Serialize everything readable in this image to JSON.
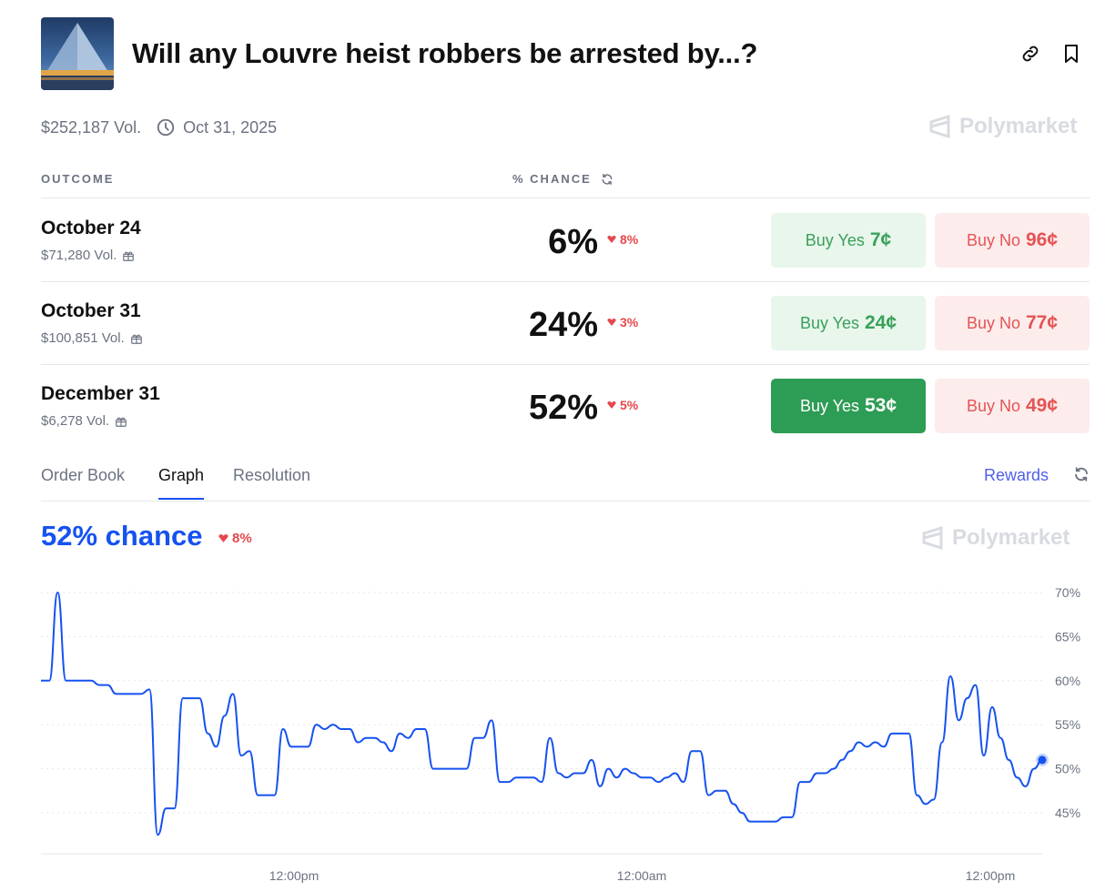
{
  "header": {
    "title": "Will any Louvre heist robbers be arrested by...?",
    "link_icon": "link-icon",
    "bookmark_icon": "bookmark-icon"
  },
  "meta": {
    "volume": "$252,187 Vol.",
    "date": "Oct 31, 2025",
    "brand": "Polymarket"
  },
  "table": {
    "col_outcome": "OUTCOME",
    "col_chance": "% CHANCE",
    "rows": [
      {
        "name": "October 24",
        "volume": "$71,280 Vol.",
        "chance": "6%",
        "change": "8%",
        "yes_label": "Buy Yes",
        "yes_price": "7¢",
        "no_label": "Buy No",
        "no_price": "96¢"
      },
      {
        "name": "October 31",
        "volume": "$100,851 Vol.",
        "chance": "24%",
        "change": "3%",
        "yes_label": "Buy Yes",
        "yes_price": "24¢",
        "no_label": "Buy No",
        "no_price": "77¢"
      },
      {
        "name": "December 31",
        "volume": "$6,278 Vol.",
        "chance": "52%",
        "change": "5%",
        "yes_label": "Buy Yes",
        "yes_price": "53¢",
        "no_label": "Buy No",
        "no_price": "49¢"
      }
    ]
  },
  "tabs": {
    "items": [
      "Order Book",
      "Graph",
      "Resolution"
    ],
    "active": "Graph",
    "rewards": "Rewards"
  },
  "graph": {
    "chance_text": "52% chance",
    "change": "8%",
    "brand": "Polymarket"
  },
  "colors": {
    "line": "#1652f0",
    "yes": "#2d9c54",
    "no": "#e45454",
    "down": "#e5484d"
  },
  "chart_data": {
    "type": "line",
    "x_tick_labels": [
      "12:00pm",
      "12:00am",
      "12:00pm"
    ],
    "y_ticks": [
      70,
      65,
      60,
      55,
      50,
      45
    ],
    "y_tick_labels": [
      "70%",
      "65%",
      "60%",
      "55%",
      "50%",
      "45%"
    ],
    "ylim": [
      41,
      71
    ],
    "grid": true,
    "series": [
      {
        "values": [
          60,
          60,
          70,
          60,
          60,
          60,
          60,
          59.5,
          59.5,
          58.5,
          58.5,
          58.5,
          58.5,
          59,
          42.5,
          45.5,
          45.5,
          58,
          58,
          58,
          54,
          52.5,
          56,
          58.5,
          51.5,
          52,
          47,
          47,
          47,
          54.5,
          52.5,
          52.5,
          52.5,
          55,
          54.5,
          55,
          54.5,
          54.5,
          53,
          53.5,
          53.5,
          53,
          52,
          54,
          53.5,
          54.5,
          54.5,
          50,
          50,
          50,
          50,
          50,
          53.5,
          53.5,
          55.5,
          48.5,
          48.5,
          49,
          49,
          49,
          48.5,
          53.5,
          49.5,
          49,
          49.5,
          49.5,
          51,
          48,
          50,
          49,
          50,
          49.5,
          49,
          49,
          48.5,
          49,
          49.5,
          48.5,
          52,
          52,
          47,
          47.5,
          47.5,
          46,
          45,
          44,
          44,
          44,
          44,
          44.5,
          44.5,
          48.5,
          48.5,
          49.5,
          49.5,
          50,
          51,
          52,
          53,
          52.5,
          53,
          52.5,
          54,
          54,
          54,
          47,
          46,
          46.5,
          53,
          60.5,
          55.5,
          58,
          59.5,
          51.5,
          57,
          53.5,
          51,
          49,
          48,
          50,
          51
        ]
      }
    ]
  }
}
